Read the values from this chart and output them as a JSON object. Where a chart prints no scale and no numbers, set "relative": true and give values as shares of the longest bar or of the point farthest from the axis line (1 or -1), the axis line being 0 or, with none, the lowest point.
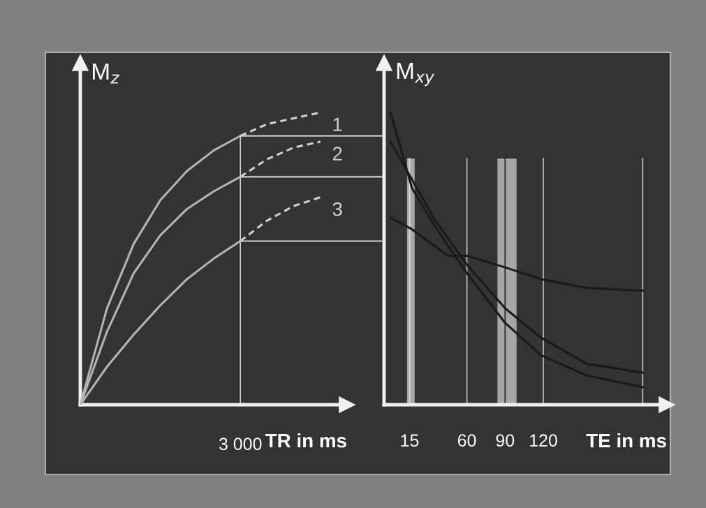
{
  "chart_data": [
    {
      "type": "line",
      "relative": true,
      "ylabel": "M$_{z}$",
      "xlabel": "TR in ms",
      "categories": [
        null,
        null,
        null,
        null,
        null,
        null,
        null,
        null,
        null,
        null,
        null
      ],
      "grid": false,
      "marker": "none",
      "annotations": [
        "3 000"
      ],
      "ref_lines": [
        {
          "axis": "y",
          "value": 0.92,
          "color": "#d0d0d0"
        },
        {
          "axis": "y",
          "value": 0.78,
          "color": "#d0d0d0"
        },
        {
          "axis": "y",
          "value": 0.56,
          "color": "#d0d0d0"
        }
      ],
      "series": [
        {
          "color": "#b4b4b4",
          "line_style": "solid",
          "values": [
            0,
            0.33,
            0.55,
            0.7,
            0.8,
            0.87,
            0.92,
            null,
            null,
            null,
            null
          ]
        },
        {
          "name": "1",
          "color": "#d0d0d0",
          "line_style": "dashed",
          "values": [
            null,
            null,
            null,
            null,
            null,
            null,
            0.92,
            0.96,
            0.98,
            1.0,
            null
          ]
        },
        {
          "color": "#b4b4b4",
          "line_style": "solid",
          "values": [
            0,
            0.25,
            0.45,
            0.58,
            0.67,
            0.73,
            0.78,
            null,
            null,
            null,
            null
          ]
        },
        {
          "name": "2",
          "color": "#d0d0d0",
          "line_style": "dashed",
          "values": [
            null,
            null,
            null,
            null,
            null,
            null,
            0.78,
            0.84,
            0.88,
            0.9,
            null
          ]
        },
        {
          "color": "#b4b4b4",
          "line_style": "solid",
          "values": [
            0,
            0.13,
            0.24,
            0.34,
            0.43,
            0.5,
            0.56,
            null,
            null,
            null,
            null
          ]
        },
        {
          "name": "3",
          "color": "#d0d0d0",
          "line_style": "dashed",
          "values": [
            null,
            null,
            null,
            null,
            null,
            null,
            0.56,
            0.63,
            0.68,
            0.71,
            null
          ]
        }
      ]
    },
    {
      "type": "line",
      "relative": true,
      "ylabel": "M$_{xy}$",
      "xlabel": "TE in ms",
      "xlim": [
        -5,
        217
      ],
      "xticks": [
        15,
        60,
        90,
        120
      ],
      "grid": false,
      "marker": "none",
      "ref_lines": [
        {
          "axis": "x",
          "value": 15,
          "color": "#e0e0e0"
        },
        {
          "axis": "x",
          "value": 60,
          "color": "#c0c0c0"
        },
        {
          "axis": "x",
          "value": 90,
          "color": "#202020"
        },
        {
          "axis": "x",
          "value": 120,
          "color": "#c0c0c0"
        },
        {
          "axis": "x",
          "value": 198,
          "color": "#c0c0c0"
        }
      ],
      "bands": [
        {
          "axis": "x",
          "from": 13,
          "to": 19,
          "color": "#d8d8d8"
        },
        {
          "axis": "x",
          "from": 84,
          "to": 99,
          "color": "#d8d8d8"
        }
      ],
      "series": [
        {
          "color": "#1a1a1a",
          "line_style": "solid",
          "x": [
            0,
            17,
            45,
            60,
            90,
            118,
            154,
            198
          ],
          "values": [
            0.64,
            0.6,
            0.51,
            0.51,
            0.47,
            0.43,
            0.4,
            0.39
          ]
        },
        {
          "color": "#1a1a1a",
          "line_style": "solid",
          "x": [
            0,
            17,
            35,
            60,
            90,
            118,
            154,
            198
          ],
          "values": [
            0.9,
            0.77,
            0.63,
            0.48,
            0.33,
            0.23,
            0.14,
            0.11
          ]
        },
        {
          "color": "#1a1a1a",
          "line_style": "solid",
          "x": [
            0,
            17,
            35,
            60,
            90,
            118,
            154,
            198
          ],
          "values": [
            1.0,
            0.74,
            0.61,
            0.45,
            0.28,
            0.17,
            0.1,
            0.06
          ]
        }
      ]
    }
  ]
}
